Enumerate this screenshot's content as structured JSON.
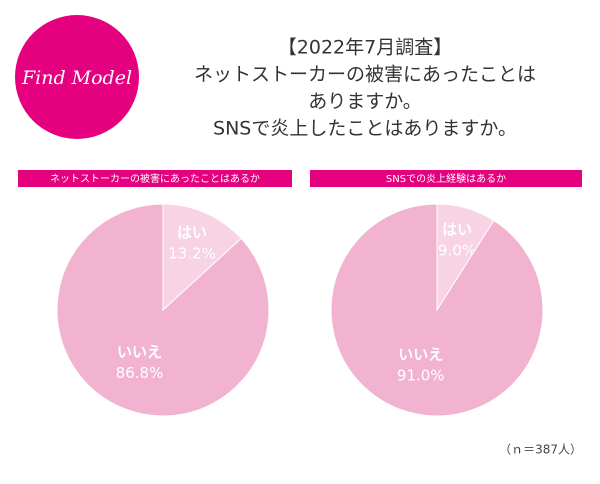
{
  "header": {
    "logo": "Find Model",
    "title": [
      "【2022年7月調査】",
      "ネットストーカーの被害にあったことは",
      "ありますか。",
      "SNSで炎上したことはありますか。"
    ]
  },
  "chart_data": [
    {
      "type": "pie",
      "title": "ネットストーカーの被害にあったことはあるか",
      "categories": [
        "はい",
        "いいえ"
      ],
      "values": [
        13.2,
        86.8
      ],
      "value_labels": [
        "13.2%",
        "86.8%"
      ],
      "colors": [
        "#f7d3e4",
        "#f1b3d0"
      ]
    },
    {
      "type": "pie",
      "title": "SNSでの炎上経験はあるか",
      "categories": [
        "はい",
        "いいえ"
      ],
      "values": [
        9.0,
        91.0
      ],
      "value_labels": [
        "9.0%",
        "91.0%"
      ],
      "colors": [
        "#f7d3e4",
        "#f1b3d0"
      ]
    }
  ],
  "footnote": "（ｎ＝387人）"
}
